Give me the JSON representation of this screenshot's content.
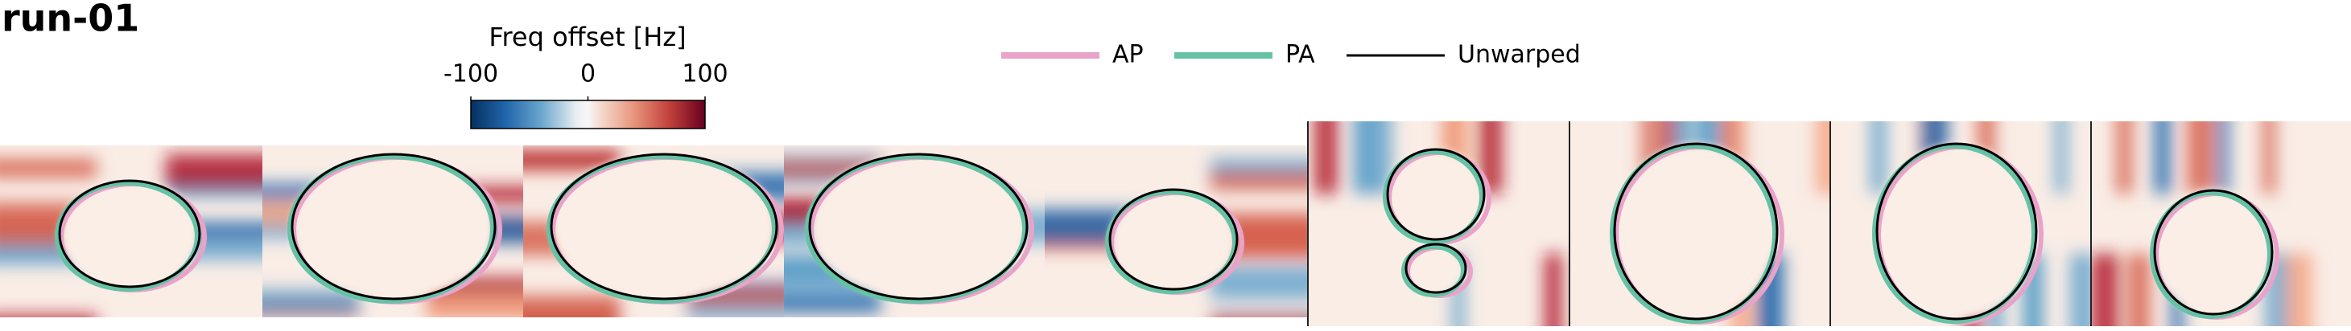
{
  "title": "run-01",
  "colorbar": {
    "label": "Freq offset [Hz]",
    "range": [
      -100,
      100
    ],
    "ticks": [
      -100,
      0,
      100
    ]
  },
  "legend": [
    {
      "name": "AP",
      "color": "#e9a3c9"
    },
    {
      "name": "PA",
      "color": "#66c2a5"
    },
    {
      "name": "Unwarped",
      "color": "#000000"
    }
  ]
}
